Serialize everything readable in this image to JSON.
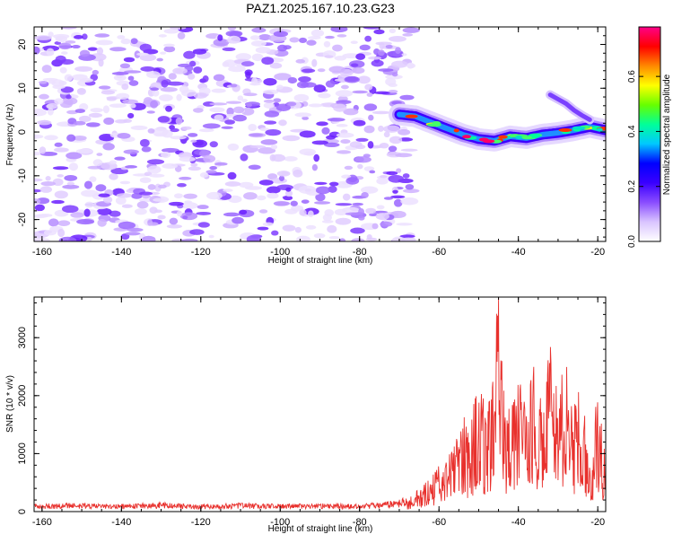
{
  "title": "PAZ1.2025.167.10.23.G23",
  "chart_data": [
    {
      "type": "heatmap",
      "xlabel": "Height of straight line (km)",
      "ylabel": "Frequency (Hz)",
      "xlim": [
        -162,
        -18
      ],
      "ylim": [
        -25,
        24
      ],
      "xticks": [
        -160,
        -140,
        -120,
        -100,
        -80,
        -60,
        -40,
        -20
      ],
      "yticks": [
        -20,
        -10,
        0,
        10,
        20
      ],
      "colorbar": {
        "label": "Normalized spectral amplitude",
        "range": [
          0.0,
          0.78
        ],
        "ticks": [
          0.0,
          0.2,
          0.4,
          0.6
        ],
        "tick_labels": [
          "0.0",
          "0.2",
          "0.4",
          "0.6"
        ],
        "colormap": [
          "#ffffff",
          "#d9c4ff",
          "#8a4dff",
          "#3a00ff",
          "#0000ff",
          "#00c8ff",
          "#00ff9a",
          "#66ff00",
          "#ffff00",
          "#ff8800",
          "#ff0000",
          "#ff0088"
        ]
      },
      "noise_region_x": [
        -162,
        -67
      ],
      "ridge": {
        "x": [
          -70,
          -66,
          -62,
          -58,
          -54,
          -50,
          -46,
          -42,
          -38,
          -34,
          -30,
          -26,
          -22,
          -18
        ],
        "y": [
          4.0,
          3.6,
          2.2,
          0.8,
          -0.6,
          -1.6,
          -2.0,
          -1.0,
          -1.4,
          -0.6,
          -0.2,
          0.4,
          1.2,
          0.4
        ]
      },
      "ridge_branch": {
        "x": [
          -32,
          -30,
          -28,
          -26,
          -24,
          -22
        ],
        "y": [
          8.5,
          7.5,
          6.5,
          5.0,
          3.8,
          2.8
        ]
      }
    },
    {
      "type": "line",
      "xlabel": "Height of straight line (km)",
      "ylabel": "SNR (10 * v/v)",
      "xlim": [
        -162,
        -18
      ],
      "ylim": [
        0,
        3700
      ],
      "xticks": [
        -160,
        -140,
        -120,
        -100,
        -80,
        -60,
        -40,
        -20
      ],
      "yticks": [
        0,
        1000,
        2000,
        3000
      ],
      "color": "#e8302c",
      "series": [
        {
          "x": [
            -162,
            -150,
            -140,
            -130,
            -120,
            -110,
            -100,
            -90,
            -80,
            -70,
            -66,
            -62,
            -58,
            -56,
            -54,
            -52,
            -50,
            -48,
            -46,
            -45,
            -44,
            -42,
            -40,
            -38,
            -36,
            -34,
            -32,
            -30,
            -28,
            -26,
            -24,
            -22,
            -20,
            -18
          ],
          "y": [
            100,
            110,
            95,
            120,
            90,
            110,
            100,
            105,
            95,
            150,
            300,
            550,
            900,
            1100,
            1600,
            1400,
            2300,
            1400,
            2500,
            3700,
            2200,
            1600,
            2400,
            1500,
            2600,
            1700,
            2700,
            2000,
            2400,
            1700,
            2000,
            700,
            2000,
            800
          ]
        }
      ]
    }
  ]
}
